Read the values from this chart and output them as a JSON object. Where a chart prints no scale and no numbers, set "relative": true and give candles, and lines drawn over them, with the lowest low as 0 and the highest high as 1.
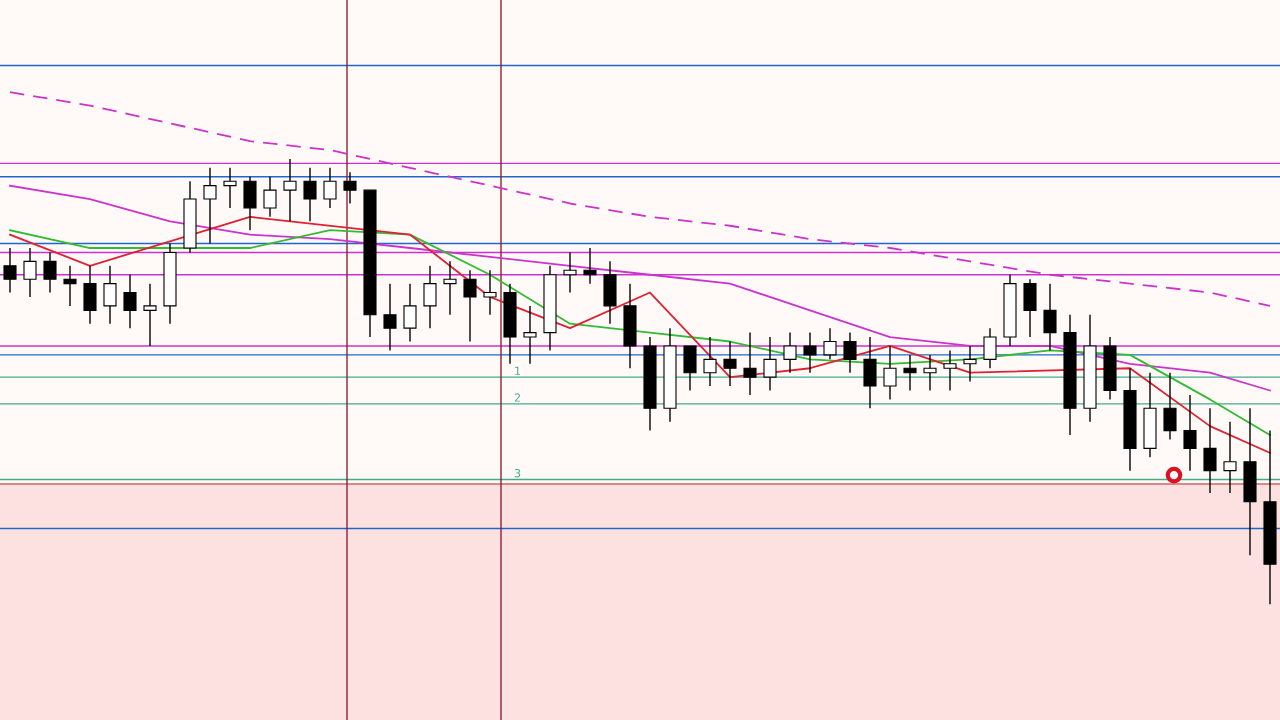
{
  "chart_data": {
    "type": "candlestick",
    "relative": true,
    "annotations": [
      {
        "text": "1",
        "y": 0.51
      },
      {
        "text": "2",
        "y": 0.45
      },
      {
        "text": "3",
        "y": 0.28
      }
    ],
    "categories": [
      null,
      null,
      null,
      null,
      null,
      null,
      null,
      null,
      null,
      null,
      null,
      null,
      null,
      null,
      null,
      null,
      null,
      null,
      null,
      null,
      null,
      null,
      null,
      null,
      null,
      null,
      null,
      null,
      null,
      null,
      null,
      null,
      null,
      null,
      null,
      null,
      null,
      null,
      null,
      null,
      null,
      null,
      null,
      null,
      null,
      null,
      null,
      null,
      null,
      null,
      null,
      null,
      null,
      null,
      null,
      null,
      null,
      null,
      null,
      null,
      null,
      null,
      null,
      null
    ],
    "series": [
      {
        "color": "#000000",
        "ohlc": [
          [
            0.76,
            0.8,
            0.7,
            0.73
          ],
          [
            0.73,
            0.8,
            0.69,
            0.77
          ],
          [
            0.77,
            0.79,
            0.7,
            0.73
          ],
          [
            0.73,
            0.76,
            0.67,
            0.72
          ],
          [
            0.72,
            0.76,
            0.63,
            0.66
          ],
          [
            0.67,
            0.76,
            0.63,
            0.72
          ],
          [
            0.7,
            0.74,
            0.62,
            0.66
          ],
          [
            0.66,
            0.72,
            0.58,
            0.67
          ],
          [
            0.67,
            0.81,
            0.63,
            0.79
          ],
          [
            0.8,
            0.95,
            0.79,
            0.91
          ],
          [
            0.91,
            0.98,
            0.81,
            0.94
          ],
          [
            0.94,
            0.98,
            0.89,
            0.95
          ],
          [
            0.95,
            0.96,
            0.84,
            0.89
          ],
          [
            0.89,
            0.96,
            0.87,
            0.93
          ],
          [
            0.93,
            1.0,
            0.86,
            0.95
          ],
          [
            0.95,
            0.98,
            0.86,
            0.91
          ],
          [
            0.91,
            0.98,
            0.89,
            0.95
          ],
          [
            0.95,
            0.97,
            0.9,
            0.93
          ],
          [
            0.93,
            0.93,
            0.6,
            0.65
          ],
          [
            0.65,
            0.72,
            0.57,
            0.62
          ],
          [
            0.62,
            0.72,
            0.59,
            0.67
          ],
          [
            0.67,
            0.76,
            0.62,
            0.72
          ],
          [
            0.72,
            0.77,
            0.65,
            0.73
          ],
          [
            0.73,
            0.75,
            0.59,
            0.69
          ],
          [
            0.69,
            0.75,
            0.65,
            0.7
          ],
          [
            0.7,
            0.72,
            0.54,
            0.6
          ],
          [
            0.6,
            0.67,
            0.54,
            0.61
          ],
          [
            0.61,
            0.76,
            0.57,
            0.74
          ],
          [
            0.74,
            0.79,
            0.7,
            0.75
          ],
          [
            0.75,
            0.8,
            0.72,
            0.74
          ],
          [
            0.74,
            0.77,
            0.63,
            0.67
          ],
          [
            0.67,
            0.72,
            0.53,
            0.58
          ],
          [
            0.58,
            0.6,
            0.39,
            0.44
          ],
          [
            0.44,
            0.62,
            0.41,
            0.58
          ],
          [
            0.58,
            0.58,
            0.48,
            0.52
          ],
          [
            0.52,
            0.6,
            0.49,
            0.55
          ],
          [
            0.55,
            0.59,
            0.49,
            0.53
          ],
          [
            0.53,
            0.61,
            0.47,
            0.51
          ],
          [
            0.51,
            0.6,
            0.48,
            0.55
          ],
          [
            0.55,
            0.61,
            0.52,
            0.58
          ],
          [
            0.58,
            0.61,
            0.52,
            0.56
          ],
          [
            0.56,
            0.62,
            0.55,
            0.59
          ],
          [
            0.59,
            0.61,
            0.52,
            0.55
          ],
          [
            0.55,
            0.6,
            0.44,
            0.49
          ],
          [
            0.49,
            0.58,
            0.46,
            0.53
          ],
          [
            0.53,
            0.56,
            0.48,
            0.52
          ],
          [
            0.52,
            0.56,
            0.48,
            0.53
          ],
          [
            0.53,
            0.57,
            0.48,
            0.54
          ],
          [
            0.54,
            0.58,
            0.5,
            0.55
          ],
          [
            0.55,
            0.62,
            0.53,
            0.6
          ],
          [
            0.6,
            0.74,
            0.58,
            0.72
          ],
          [
            0.72,
            0.73,
            0.6,
            0.66
          ],
          [
            0.66,
            0.72,
            0.57,
            0.61
          ],
          [
            0.61,
            0.65,
            0.38,
            0.44
          ],
          [
            0.44,
            0.65,
            0.41,
            0.58
          ],
          [
            0.58,
            0.6,
            0.46,
            0.48
          ],
          [
            0.48,
            0.53,
            0.3,
            0.35
          ],
          [
            0.35,
            0.52,
            0.33,
            0.44
          ],
          [
            0.44,
            0.52,
            0.37,
            0.39
          ],
          [
            0.39,
            0.47,
            0.3,
            0.35
          ],
          [
            0.35,
            0.44,
            0.25,
            0.3
          ],
          [
            0.3,
            0.41,
            0.25,
            0.32
          ],
          [
            0.32,
            0.44,
            0.11,
            0.23
          ],
          [
            0.23,
            0.39,
            0,
            0.09
          ]
        ]
      },
      {
        "type": "line",
        "color": "#cc33cc",
        "line_style": "dashed",
        "values": [
          1.15,
          null,
          null,
          null,
          1.12,
          null,
          null,
          null,
          1.08,
          null,
          null,
          null,
          1.04,
          null,
          null,
          null,
          1.02,
          null,
          null,
          null,
          0.98,
          null,
          null,
          null,
          0.94,
          null,
          null,
          null,
          0.9,
          null,
          null,
          null,
          0.87,
          null,
          null,
          null,
          0.85,
          null,
          null,
          null,
          0.82,
          null,
          null,
          null,
          0.8,
          null,
          null,
          null,
          0.77,
          null,
          null,
          null,
          0.74,
          null,
          null,
          null,
          0.72,
          null,
          null,
          null,
          0.7,
          null,
          null,
          0.67
        ]
      },
      {
        "type": "line",
        "color": "#cc33cc",
        "line_style": "solid",
        "values": [
          0.94,
          null,
          null,
          null,
          0.91,
          null,
          null,
          null,
          0.86,
          null,
          null,
          null,
          0.83,
          null,
          null,
          null,
          0.82,
          null,
          null,
          null,
          0.8,
          null,
          null,
          null,
          0.78,
          null,
          null,
          null,
          0.76,
          null,
          null,
          null,
          0.74,
          null,
          null,
          null,
          0.72,
          null,
          null,
          null,
          0.66,
          null,
          null,
          null,
          0.6,
          null,
          null,
          null,
          0.58,
          null,
          null,
          null,
          0.58,
          null,
          null,
          null,
          0.54,
          null,
          null,
          null,
          0.52,
          null,
          null,
          0.48
        ]
      },
      {
        "type": "line",
        "color": "#33bb33",
        "line_style": "solid",
        "values": [
          0.84,
          null,
          null,
          null,
          0.8,
          null,
          null,
          null,
          null,
          null,
          null,
          null,
          0.8,
          null,
          null,
          null,
          0.84,
          null,
          null,
          null,
          0.83,
          null,
          null,
          null,
          0.74,
          null,
          null,
          null,
          0.63,
          null,
          null,
          null,
          0.61,
          null,
          null,
          null,
          0.59,
          null,
          null,
          null,
          0.55,
          null,
          null,
          null,
          0.54,
          null,
          null,
          null,
          0.55,
          null,
          null,
          null,
          0.57,
          null,
          null,
          null,
          0.56,
          null,
          null,
          null,
          0.46,
          null,
          null,
          0.38
        ]
      },
      {
        "type": "line",
        "color": "#dd2233",
        "line_style": "solid",
        "values": [
          0.83,
          null,
          null,
          null,
          0.76,
          null,
          null,
          null,
          null,
          null,
          null,
          null,
          0.87,
          null,
          null,
          null,
          null,
          null,
          null,
          null,
          0.83,
          null,
          null,
          null,
          0.69,
          null,
          null,
          null,
          0.62,
          null,
          null,
          null,
          0.7,
          null,
          null,
          null,
          0.51,
          null,
          null,
          null,
          0.53,
          null,
          null,
          null,
          0.58,
          null,
          null,
          null,
          0.52,
          null,
          null,
          null,
          null,
          null,
          null,
          null,
          0.53,
          null,
          null,
          null,
          0.4,
          null,
          null,
          0.34
        ]
      }
    ],
    "ref_lines": [
      {
        "axis": "y",
        "value": 1.21,
        "color": "#2266cc"
      },
      {
        "axis": "y",
        "value": 0.96,
        "color": "#2266cc"
      },
      {
        "axis": "y",
        "value": 0.81,
        "color": "#2266cc"
      },
      {
        "axis": "y",
        "value": 0.56,
        "color": "#2266cc"
      },
      {
        "axis": "y",
        "value": 0.17,
        "color": "#2266cc"
      },
      {
        "axis": "y",
        "value": 0.99,
        "color": "#cc33cc"
      },
      {
        "axis": "y",
        "value": 0.79,
        "color": "#cc33cc"
      },
      {
        "axis": "y",
        "value": 0.74,
        "color": "#cc33cc"
      },
      {
        "axis": "y",
        "value": 0.58,
        "color": "#cc33cc"
      },
      {
        "axis": "y",
        "value": 0.51,
        "color": "#44aa88"
      },
      {
        "axis": "y",
        "value": 0.45,
        "color": "#44aa88"
      },
      {
        "axis": "y",
        "value": 0.28,
        "color": "#44aa88"
      },
      {
        "axis": "y",
        "value": 0.27,
        "color": "#cc6666"
      }
    ],
    "bands": [
      {
        "axis": "y",
        "from": -0.26,
        "to": 0.27,
        "color": "#fde0e0"
      }
    ]
  }
}
